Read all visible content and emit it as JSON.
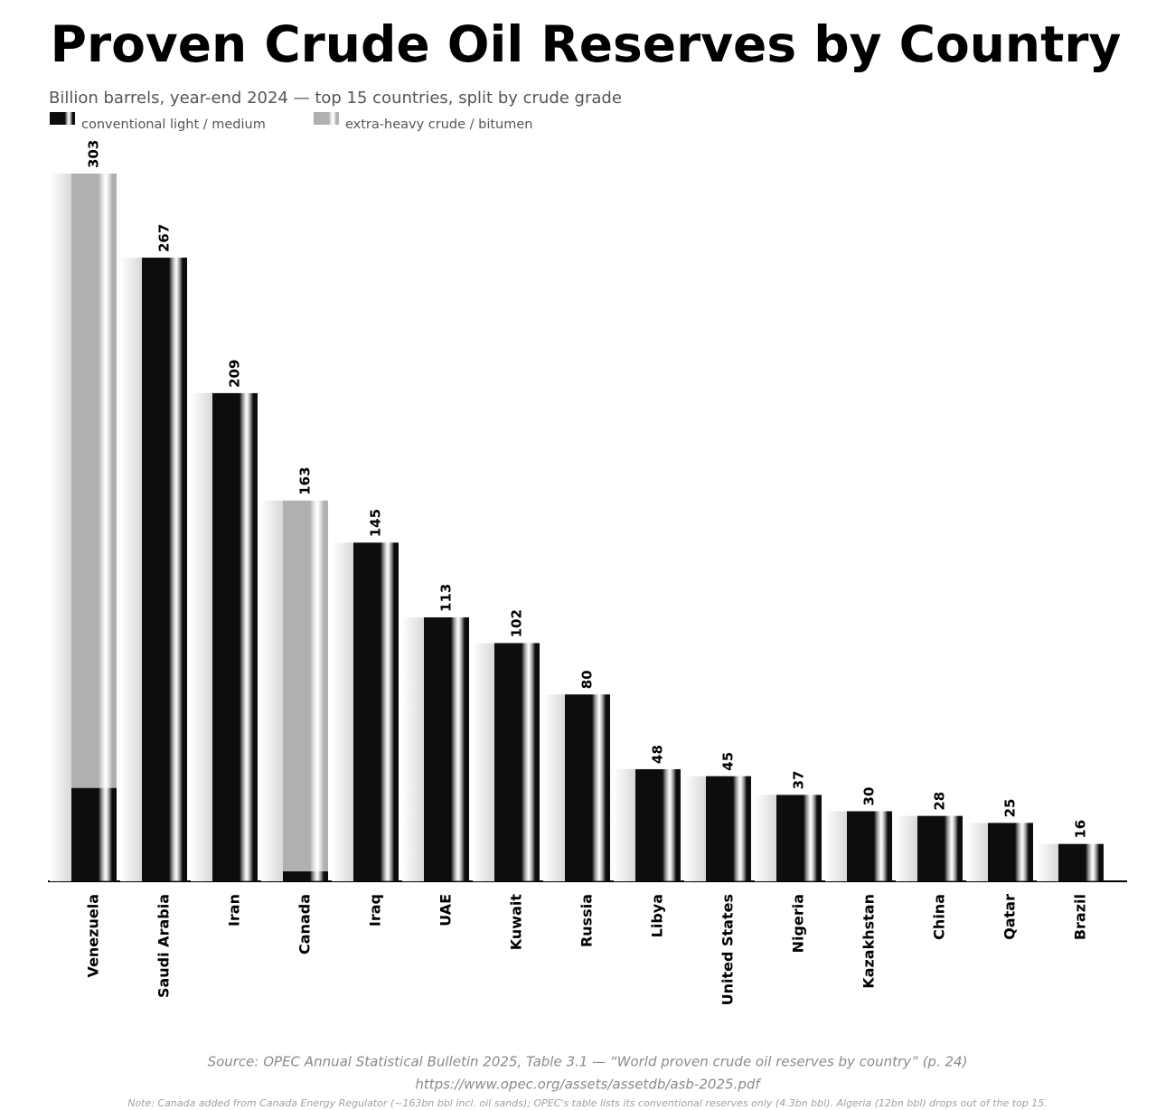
{
  "chart_data": {
    "type": "stacked-bar",
    "title": "Proven Crude Oil Reserves by Country",
    "subtitle": "Billion barrels, year-end 2024 — top 15 countries, split by crude grade",
    "categories": [
      "Venezuela",
      "Saudi Arabia",
      "Iran",
      "Canada",
      "Iraq",
      "UAE",
      "Kuwait",
      "Russia",
      "Libya",
      "United States",
      "Nigeria",
      "Kazakhstan",
      "China",
      "Qatar",
      "Brazil"
    ],
    "series": [
      {
        "name": "conventional light / medium",
        "color": "#0d0d0d",
        "values": [
          40,
          267,
          209,
          4.3,
          145,
          113,
          102,
          80,
          48,
          45,
          37,
          30,
          28,
          25,
          16
        ]
      },
      {
        "name": "extra-heavy crude / bitumen",
        "color": "#b0b0b0",
        "values": [
          263,
          0,
          0,
          158.7,
          0,
          0,
          0,
          0,
          0,
          0,
          0,
          0,
          0,
          0,
          0
        ]
      }
    ],
    "totals": [
      303,
      267,
      209,
      163,
      145,
      113,
      102,
      80,
      48,
      45,
      37,
      30,
      28,
      25,
      16
    ],
    "source": "Source: OPEC Annual Statistical Bulletin 2025, Table 3.1 — “World proven crude oil reserves by country” (p. 24)",
    "url": "https://www.opec.org/assets/assetdb/asb-2025.pdf",
    "note": "Note: Canada added from Canada Energy Regulator (~163bn bbl incl. oil sands); OPEC's table lists its conventional reserves only (4.3bn bbl). Algeria (12bn bbl) drops out of the top 15."
  }
}
